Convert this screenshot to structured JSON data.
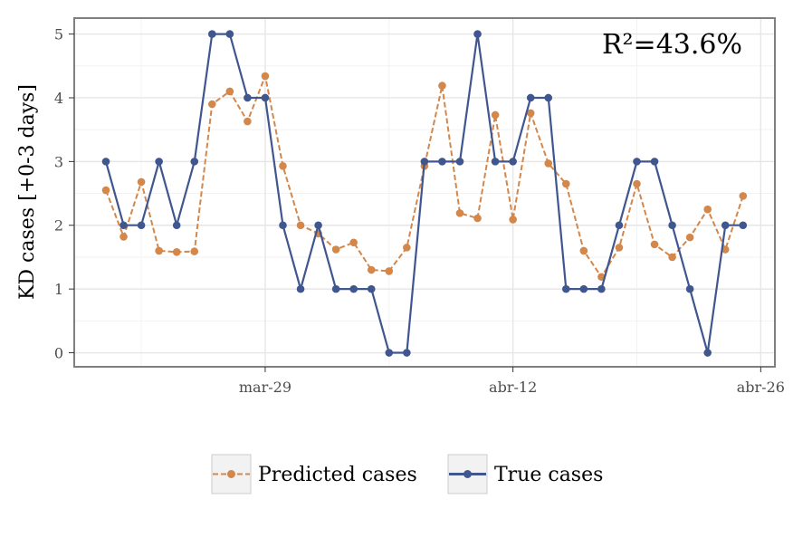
{
  "chart_data": {
    "type": "line",
    "title": "",
    "xlabel": "",
    "ylabel": "KD cases [+0-3 days]",
    "annotation": "R²=43.6%",
    "x_ticks": [
      "mar-29",
      "abr-12",
      "abr-26"
    ],
    "y_ticks": [
      "0",
      "1",
      "2",
      "3",
      "4",
      "5"
    ],
    "ylim": [
      -0.22,
      5.25
    ],
    "x": [
      "mar-20",
      "mar-21",
      "mar-22",
      "mar-23",
      "mar-24",
      "mar-25",
      "mar-26",
      "mar-27",
      "mar-28",
      "mar-29",
      "mar-30",
      "mar-31",
      "abr-01",
      "abr-02",
      "abr-03",
      "abr-04",
      "abr-05",
      "abr-06",
      "abr-07",
      "abr-08",
      "abr-09",
      "abr-10",
      "abr-11",
      "abr-12",
      "abr-13",
      "abr-14",
      "abr-15",
      "abr-16",
      "abr-17",
      "abr-18",
      "abr-19",
      "abr-20",
      "abr-21",
      "abr-22",
      "abr-23",
      "abr-24",
      "abr-25",
      "abr-26",
      "abr-27"
    ],
    "series": [
      {
        "name": "Predicted cases",
        "color": "#d4874a",
        "dashed": true,
        "values": [
          2.55,
          1.82,
          2.68,
          1.6,
          1.58,
          1.59,
          3.9,
          4.1,
          3.63,
          4.34,
          2.93,
          2.0,
          1.87,
          1.62,
          1.73,
          1.3,
          1.28,
          1.65,
          2.93,
          4.19,
          2.19,
          2.11,
          3.73,
          2.09,
          3.76,
          2.97,
          2.65,
          1.6,
          1.19,
          1.65,
          2.65,
          1.7,
          1.5,
          1.81,
          2.25,
          1.62,
          2.46,
          null,
          null
        ],
        "x_start": "mar-20"
      },
      {
        "name": "True cases",
        "color": "#3f568f",
        "dashed": false,
        "values": [
          3,
          2,
          2,
          3,
          2,
          3,
          5,
          5,
          4,
          4,
          2,
          1,
          2,
          1,
          1,
          1,
          0,
          0,
          3,
          3,
          3,
          5,
          3,
          3,
          4,
          4,
          1,
          1,
          1,
          2,
          3,
          3,
          2,
          1,
          0,
          2,
          2,
          null,
          null
        ]
      }
    ],
    "grid": true,
    "legend_position": "bottom"
  }
}
